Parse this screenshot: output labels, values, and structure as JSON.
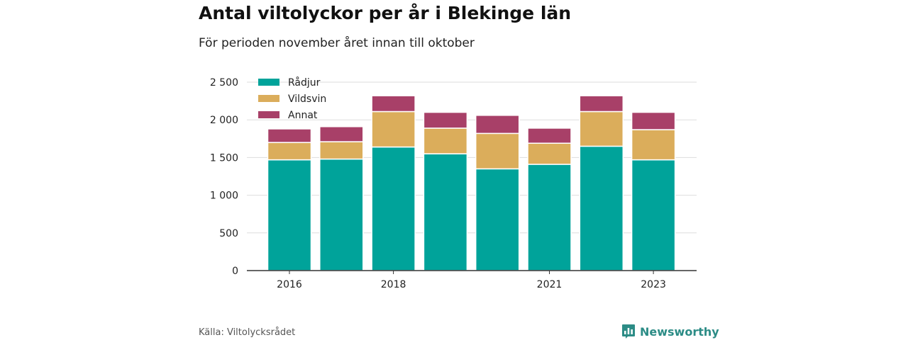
{
  "header": {
    "title": "Antal viltolyckor per år i Blekinge län",
    "subtitle": "För perioden november året innan till oktober"
  },
  "footer": {
    "source": "Källa: Viltolycksrådet",
    "brand": "Newsworthy",
    "brand_icon": "bar-chart-badge-icon",
    "brand_color": "#2c8c86"
  },
  "chart_data": {
    "type": "bar",
    "stacked": true,
    "categories": [
      "2016",
      "2017",
      "2018",
      "2019",
      "2020",
      "2021",
      "2022",
      "2023"
    ],
    "x_tick_labels": [
      "2016",
      "",
      "2018",
      "",
      "",
      "2021",
      "",
      "2023"
    ],
    "y_tick_labels": [
      "0",
      "500",
      "1 000",
      "1 500",
      "2 000",
      "2 500"
    ],
    "y_ticks": [
      0,
      500,
      1000,
      1500,
      2000,
      2500
    ],
    "ylim": [
      0,
      2500
    ],
    "grid": true,
    "legend_position": "top-left",
    "series": [
      {
        "name": "Rådjur",
        "color": "#00a39a",
        "values": [
          1470,
          1480,
          1640,
          1550,
          1350,
          1410,
          1650,
          1470
        ]
      },
      {
        "name": "Vildsvin",
        "color": "#dbad5b",
        "values": [
          230,
          230,
          470,
          340,
          470,
          280,
          460,
          400
        ]
      },
      {
        "name": "Annat",
        "color": "#a84068",
        "values": [
          180,
          200,
          210,
          210,
          240,
          200,
          210,
          230
        ]
      }
    ]
  }
}
